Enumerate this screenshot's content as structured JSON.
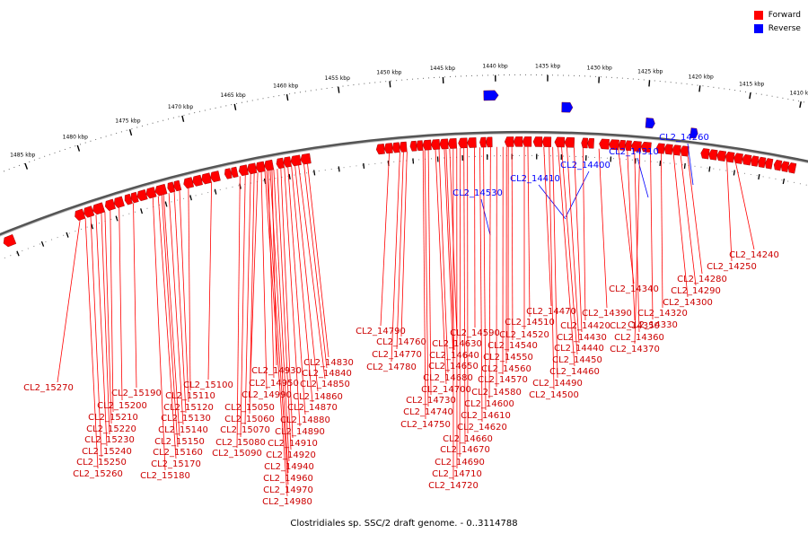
{
  "legend": {
    "forward_label": "Forward",
    "reverse_label": "Reverse",
    "forward_color": "#ff0000",
    "reverse_color": "#0000ff"
  },
  "footer_text": "Clostridiales sp. SSC/2 draft genome. - 0..3114788",
  "scale_labels": [
    "1410 kbp",
    "1415 kbp",
    "1420 kbp",
    "1425 kbp",
    "1430 kbp",
    "1435 kbp",
    "1440 kbp",
    "1445 kbp",
    "1450 kbp",
    "1455 kbp",
    "1460 kbp",
    "1465 kbp",
    "1470 kbp",
    "1475 kbp",
    "1480 kbp",
    "1485 kbp"
  ],
  "forward_labels": [
    "CL2_14240",
    "CL2_14250",
    "CL2_14280",
    "CL2_14290",
    "CL2_14300",
    "CL2_14320",
    "CL2_14330",
    "CL2_14340",
    "CL2_14350",
    "CL2_14360",
    "CL2_14370",
    "CL2_14390",
    "CL2_14420",
    "CL2_14430",
    "CL2_14440",
    "CL2_14450",
    "CL2_14460",
    "CL2_14470",
    "CL2_14490",
    "CL2_14500",
    "CL2_14510",
    "CL2_14520",
    "CL2_14540",
    "CL2_14550",
    "CL2_14560",
    "CL2_14570",
    "CL2_14580",
    "CL2_14590",
    "CL2_14600",
    "CL2_14610",
    "CL2_14620",
    "CL2_14630",
    "CL2_14640",
    "CL2_14650",
    "CL2_14660",
    "CL2_14670",
    "CL2_14680",
    "CL2_14690",
    "CL2_14700",
    "CL2_14710",
    "CL2_14720",
    "CL2_14730",
    "CL2_14740",
    "CL2_14750",
    "CL2_14760",
    "CL2_14770",
    "CL2_14780",
    "CL2_14790",
    "CL2_14830",
    "CL2_14840",
    "CL2_14850",
    "CL2_14860",
    "CL2_14870",
    "CL2_14880",
    "CL2_14890",
    "CL2_14910",
    "CL2_14920",
    "CL2_14930",
    "CL2_14940",
    "CL2_14950",
    "CL2_14960",
    "CL2_14970",
    "CL2_14980",
    "CL2_14990",
    "CL2_15050",
    "CL2_15060",
    "CL2_15070",
    "CL2_15080",
    "CL2_15090",
    "CL2_15100",
    "CL2_15110",
    "CL2_15120",
    "CL2_15130",
    "CL2_15140",
    "CL2_15150",
    "CL2_15160",
    "CL2_15170",
    "CL2_15180",
    "CL2_15190",
    "CL2_15200",
    "CL2_15210",
    "CL2_15220",
    "CL2_15230",
    "CL2_15240",
    "CL2_15250",
    "CL2_15260",
    "CL2_15270"
  ],
  "reverse_labels": [
    "CL2_14260",
    "CL2_14310",
    "CL2_14400",
    "CL2_14410",
    "CL2_14530"
  ]
}
